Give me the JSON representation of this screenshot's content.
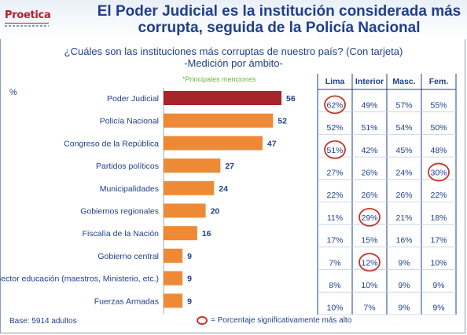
{
  "logo": {
    "text": "Proetica"
  },
  "title": "El Poder Judicial es la institución considerada más corrupta, seguida de la Policía Nacional",
  "question": "¿Cuáles son las instituciones más corruptas de nuestro país? (Con tarjeta)",
  "subtitle": "-Medición por ámbito-",
  "mentions_note": "*Principales menciones",
  "percent_label": "%",
  "base_note": "Base: 5914 adultos",
  "legend_note": "= Porcentaje significativamente más alto",
  "colors": {
    "highlight_bar": "#a8242b",
    "bar": "#ee8a36",
    "title": "#1f3f8c",
    "circle": "#c0392b"
  },
  "chart_data": {
    "type": "bar",
    "orientation": "horizontal",
    "categories": [
      "Poder Judicial",
      "Policía Nacional",
      "Congreso de la República",
      "Partidos políticos",
      "Municipalidades",
      "Gobiernos regionales",
      "Fiscalía de la Nación",
      "Gobierno central",
      "Sector educación (maestros, Ministerio, etc.)",
      "Fuerzas Armadas"
    ],
    "values": [
      56,
      52,
      47,
      27,
      24,
      20,
      16,
      9,
      9,
      9
    ],
    "xlim": [
      0,
      60
    ]
  },
  "table": {
    "columns": [
      "Lima",
      "Interior",
      "Masc.",
      "Fem."
    ],
    "rows": [
      [
        "62%",
        "49%",
        "57%",
        "55%"
      ],
      [
        "52%",
        "51%",
        "54%",
        "50%"
      ],
      [
        "51%",
        "42%",
        "45%",
        "48%"
      ],
      [
        "27%",
        "26%",
        "24%",
        "30%"
      ],
      [
        "22%",
        "26%",
        "26%",
        "22%"
      ],
      [
        "11%",
        "29%",
        "21%",
        "18%"
      ],
      [
        "17%",
        "15%",
        "16%",
        "17%"
      ],
      [
        "7%",
        "12%",
        "9%",
        "10%"
      ],
      [
        "8%",
        "10%",
        "9%",
        "9%"
      ],
      [
        "10%",
        "7%",
        "9%",
        "9%"
      ]
    ],
    "circled": [
      [
        0,
        0
      ],
      [
        2,
        0
      ],
      [
        3,
        3
      ],
      [
        5,
        1
      ],
      [
        7,
        1
      ]
    ]
  }
}
